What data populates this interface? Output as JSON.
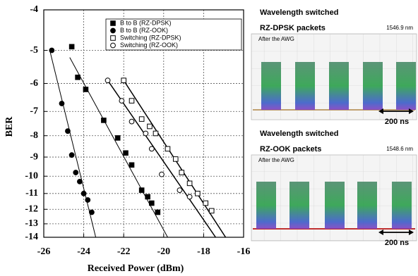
{
  "chart_data": {
    "type": "scatter",
    "xlabel": "Received Power (dBm)",
    "ylabel": "BER",
    "xlim": [
      -26,
      -16
    ],
    "xticks": [
      -26,
      -24,
      -22,
      -20,
      -18,
      -16
    ],
    "ylim": [
      -4,
      -14
    ],
    "yticks": [
      -4,
      -5,
      -6,
      -7,
      -8,
      -9,
      -10,
      -11,
      -12,
      -13,
      -14
    ],
    "yscale": "log-neg",
    "grid": true,
    "legend": "upper right",
    "series": [
      {
        "name": "B to B (RZ-DPSK)",
        "marker": "square",
        "filled": true,
        "color": "#000000",
        "x": [
          -24.6,
          -24.3,
          -23.9,
          -23.0,
          -22.3,
          -21.9,
          -21.6,
          -21.1,
          -20.8,
          -20.6,
          -20.3
        ],
        "values": [
          -4.9,
          -5.8,
          -6.2,
          -7.35,
          -8.1,
          -8.8,
          -9.4,
          -10.8,
          -11.2,
          -11.6,
          -12.2
        ]
      },
      {
        "name": "B to B (RZ-OOK)",
        "marker": "circle",
        "filled": true,
        "color": "#000000",
        "x": [
          -25.6,
          -25.1,
          -24.8,
          -24.6,
          -24.4,
          -24.2,
          -24.0,
          -23.8,
          -23.6
        ],
        "values": [
          -5.0,
          -6.7,
          -7.8,
          -8.9,
          -9.8,
          -10.3,
          -11.0,
          -11.4,
          -12.2
        ]
      },
      {
        "name": "Switching (RZ-DPSK)",
        "marker": "square",
        "filled": false,
        "color": "#000000",
        "x": [
          -22.0,
          -21.6,
          -21.1,
          -20.7,
          -20.4,
          -19.8,
          -19.4,
          -19.1,
          -18.7,
          -18.3,
          -17.9,
          -17.6
        ],
        "values": [
          -5.9,
          -6.6,
          -7.3,
          -7.6,
          -7.9,
          -8.6,
          -9.1,
          -9.8,
          -10.4,
          -11.0,
          -11.6,
          -12.1
        ]
      },
      {
        "name": "Switching (RZ-OOK)",
        "marker": "circle",
        "filled": false,
        "color": "#000000",
        "x": [
          -22.8,
          -22.1,
          -21.6,
          -20.9,
          -20.6,
          -20.1,
          -19.2,
          -18.7
        ],
        "values": [
          -5.9,
          -6.6,
          -7.4,
          -7.9,
          -8.6,
          -9.9,
          -10.8,
          -11.2
        ]
      }
    ],
    "fit_lines": [
      {
        "x": [
          -25.7,
          -23.4
        ],
        "values": [
          -5.0,
          -14
        ]
      },
      {
        "x": [
          -24.7,
          -19.8
        ],
        "values": [
          -5.2,
          -14
        ]
      },
      {
        "x": [
          -22.8,
          -17.4
        ],
        "values": [
          -5.9,
          -14
        ]
      },
      {
        "x": [
          -22.0,
          -16.9
        ],
        "values": [
          -5.9,
          -14
        ]
      }
    ]
  },
  "panels": [
    {
      "title": "Wavelength switched",
      "subtitle": "RZ-DPSK packets",
      "wavelength": "1546.9 nm",
      "note": "After the AWG",
      "scale": "200 ns"
    },
    {
      "title": "Wavelength switched",
      "subtitle": "RZ-OOK packets",
      "wavelength": "1548.6 nm",
      "note": "After the AWG",
      "scale": "200 ns"
    }
  ]
}
